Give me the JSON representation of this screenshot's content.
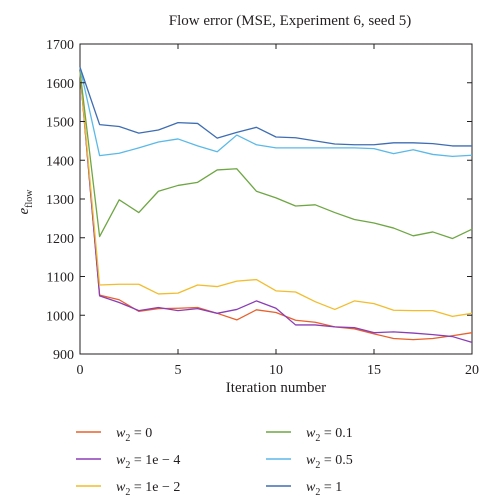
{
  "chart_data": {
    "type": "line",
    "title": "Flow error (MSE, Experiment 6, seed 5)",
    "xlabel": "Iteration number",
    "ylabel": "e",
    "ylabel_sub": "flow",
    "xlim": [
      0,
      20
    ],
    "ylim": [
      900,
      1700
    ],
    "x_ticks": [
      0,
      5,
      10,
      15,
      20
    ],
    "y_ticks": [
      900,
      1000,
      1100,
      1200,
      1300,
      1400,
      1500,
      1600,
      1700
    ],
    "grid": false,
    "legend_position": "bottom",
    "x": [
      0,
      1,
      2,
      3,
      4,
      5,
      6,
      7,
      8,
      9,
      10,
      11,
      12,
      13,
      14,
      15,
      16,
      17,
      18,
      19,
      20
    ],
    "series": [
      {
        "name": "w2 = 0",
        "legend_var": "w",
        "legend_sub": "2",
        "legend_value": " = 0",
        "color": "#e8602c",
        "values": [
          1630,
          1052,
          1040,
          1010,
          1017,
          1018,
          1020,
          1005,
          988,
          1014,
          1007,
          987,
          982,
          970,
          965,
          952,
          940,
          937,
          940,
          947,
          955
        ]
      },
      {
        "name": "w2 = 1e − 4",
        "legend_var": "w",
        "legend_sub": "2",
        "legend_value": " = 1e − 4",
        "color": "#8a3db5",
        "values": [
          1630,
          1050,
          1033,
          1012,
          1020,
          1012,
          1017,
          1005,
          1015,
          1037,
          1018,
          975,
          975,
          970,
          968,
          955,
          957,
          954,
          950,
          945,
          930
        ]
      },
      {
        "name": "w2 = 1e − 2",
        "legend_var": "w",
        "legend_sub": "2",
        "legend_value": " = 1e − 2",
        "color": "#f2bc2c",
        "values": [
          1630,
          1078,
          1080,
          1080,
          1055,
          1057,
          1078,
          1074,
          1088,
          1092,
          1063,
          1060,
          1035,
          1015,
          1037,
          1030,
          1013,
          1012,
          1012,
          997,
          1005
        ]
      },
      {
        "name": "w2 = 0.1",
        "legend_var": "w",
        "legend_sub": "2",
        "legend_value": " = 0.1",
        "color": "#6ea643",
        "values": [
          1630,
          1203,
          1298,
          1265,
          1320,
          1335,
          1343,
          1375,
          1378,
          1320,
          1303,
          1282,
          1285,
          1265,
          1247,
          1238,
          1225,
          1205,
          1215,
          1198,
          1222
        ]
      },
      {
        "name": "w2 = 0.5",
        "legend_var": "w",
        "legend_sub": "2",
        "legend_value": " = 0.5",
        "color": "#5ab9e8",
        "values": [
          1640,
          1412,
          1418,
          1432,
          1447,
          1455,
          1437,
          1422,
          1465,
          1440,
          1432,
          1432,
          1432,
          1432,
          1432,
          1430,
          1417,
          1427,
          1415,
          1410,
          1413
        ]
      },
      {
        "name": "w2 = 1",
        "legend_var": "w",
        "legend_sub": "2",
        "legend_value": " = 1",
        "color": "#3e6db3",
        "values": [
          1640,
          1492,
          1487,
          1470,
          1478,
          1497,
          1495,
          1457,
          1472,
          1485,
          1460,
          1458,
          1450,
          1442,
          1440,
          1440,
          1445,
          1445,
          1443,
          1437,
          1437
        ]
      }
    ]
  }
}
